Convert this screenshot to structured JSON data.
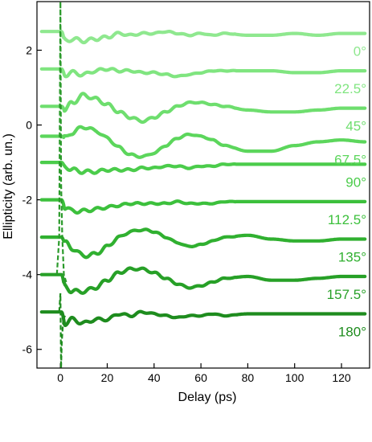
{
  "chart_data": {
    "type": "line",
    "xlabel": "Delay (ps)",
    "ylabel": "Ellipticity (arb. un.)",
    "xlim": [
      -10,
      132
    ],
    "ylim": [
      -6.5,
      3.3
    ],
    "xticks": [
      0,
      20,
      40,
      60,
      80,
      100,
      120
    ],
    "yticks": [
      2,
      0,
      -2,
      -4,
      -6
    ],
    "grid": false,
    "series": [
      {
        "name": "0°",
        "color": "#8fe88f",
        "offset": 2.5,
        "x": [
          -8,
          -2,
          0.5,
          2,
          5,
          10,
          15,
          20,
          25,
          30,
          35,
          40,
          45,
          50,
          55,
          60,
          65,
          70,
          80,
          90,
          100,
          110,
          120,
          130
        ],
        "y": [
          2.5,
          2.5,
          2.5,
          2.25,
          2.3,
          2.25,
          2.3,
          2.35,
          2.45,
          2.4,
          2.45,
          2.45,
          2.5,
          2.45,
          2.4,
          2.45,
          2.4,
          2.45,
          2.4,
          2.4,
          2.45,
          2.4,
          2.45,
          2.45
        ]
      },
      {
        "name": "22.5°",
        "color": "#80e580",
        "offset": 1.5,
        "x": [
          -8,
          -2,
          0.5,
          2,
          5,
          10,
          15,
          20,
          25,
          30,
          35,
          40,
          45,
          50,
          55,
          60,
          65,
          70,
          80,
          90,
          100,
          110,
          120,
          130
        ],
        "y": [
          1.5,
          1.5,
          1.5,
          1.35,
          1.4,
          1.35,
          1.45,
          1.5,
          1.45,
          1.45,
          1.4,
          1.4,
          1.35,
          1.3,
          1.35,
          1.4,
          1.45,
          1.45,
          1.45,
          1.45,
          1.4,
          1.4,
          1.45,
          1.45
        ]
      },
      {
        "name": "45°",
        "color": "#6ede6e",
        "offset": 0.5,
        "x": [
          -8,
          -2,
          0.5,
          2,
          5,
          10,
          15,
          20,
          25,
          30,
          35,
          40,
          45,
          50,
          55,
          60,
          65,
          70,
          80,
          90,
          100,
          110,
          120,
          130
        ],
        "y": [
          0.5,
          0.5,
          0.5,
          0.4,
          0.6,
          0.8,
          0.7,
          0.55,
          0.35,
          0.2,
          0.1,
          0.2,
          0.35,
          0.5,
          0.6,
          0.6,
          0.55,
          0.5,
          0.4,
          0.35,
          0.35,
          0.4,
          0.45,
          0.45
        ]
      },
      {
        "name": "67.5°",
        "color": "#5cd65c",
        "offset": -0.3,
        "x": [
          -8,
          -2,
          0.5,
          2,
          5,
          10,
          15,
          20,
          25,
          30,
          35,
          40,
          45,
          50,
          55,
          60,
          65,
          70,
          80,
          90,
          100,
          110,
          120,
          130
        ],
        "y": [
          -0.3,
          -0.3,
          -0.3,
          -0.35,
          -0.2,
          -0.05,
          -0.15,
          -0.35,
          -0.6,
          -0.8,
          -0.85,
          -0.75,
          -0.55,
          -0.35,
          -0.25,
          -0.3,
          -0.4,
          -0.55,
          -0.7,
          -0.7,
          -0.55,
          -0.45,
          -0.4,
          -0.45
        ]
      },
      {
        "name": "90°",
        "color": "#4bcc4b",
        "offset": -1.0,
        "x": [
          -8,
          -2,
          0.5,
          2,
          5,
          10,
          15,
          20,
          25,
          30,
          35,
          40,
          45,
          50,
          55,
          60,
          65,
          70,
          80,
          90,
          100,
          110,
          120,
          130
        ],
        "y": [
          -1.0,
          -1.0,
          -1.0,
          -1.1,
          -1.2,
          -1.25,
          -1.25,
          -1.2,
          -1.2,
          -1.2,
          -1.15,
          -1.15,
          -1.1,
          -1.1,
          -1.15,
          -1.1,
          -1.1,
          -1.05,
          -1.05,
          -1.05,
          -1.05,
          -1.05,
          -1.05,
          -1.05
        ]
      },
      {
        "name": "112.5°",
        "color": "#3cc03c",
        "offset": -2.0,
        "x": [
          -8,
          -2,
          0.5,
          2,
          5,
          10,
          15,
          20,
          25,
          30,
          35,
          40,
          45,
          50,
          55,
          60,
          65,
          70,
          80,
          90,
          100,
          110,
          120,
          130
        ],
        "y": [
          -2.0,
          -2.0,
          -2.0,
          -2.2,
          -2.3,
          -2.3,
          -2.25,
          -2.2,
          -2.15,
          -2.1,
          -2.1,
          -2.1,
          -2.1,
          -2.05,
          -2.1,
          -2.1,
          -2.1,
          -2.05,
          -2.05,
          -2.05,
          -2.05,
          -2.05,
          -2.05,
          -2.05
        ]
      },
      {
        "name": "135°",
        "color": "#30b030",
        "offset": -3.0,
        "x": [
          -8,
          -2,
          0.5,
          2,
          5,
          10,
          15,
          20,
          25,
          30,
          35,
          40,
          45,
          50,
          55,
          60,
          65,
          70,
          80,
          90,
          100,
          110,
          120,
          130
        ],
        "y": [
          -3.0,
          -3.0,
          -3.0,
          -3.15,
          -3.3,
          -3.5,
          -3.45,
          -3.25,
          -3.0,
          -2.85,
          -2.8,
          -2.85,
          -3.0,
          -3.15,
          -3.25,
          -3.2,
          -3.1,
          -3.0,
          -2.95,
          -3.05,
          -3.1,
          -3.1,
          -3.05,
          -3.05
        ]
      },
      {
        "name": "157.5°",
        "color": "#27a027",
        "offset": -4.0,
        "x": [
          -8,
          -2,
          0.5,
          2,
          5,
          10,
          15,
          20,
          25,
          30,
          35,
          40,
          45,
          50,
          55,
          60,
          65,
          70,
          80,
          90,
          100,
          110,
          120,
          130
        ],
        "y": [
          -4.0,
          -4.0,
          -4.0,
          -4.3,
          -4.45,
          -4.45,
          -4.35,
          -4.15,
          -3.95,
          -3.85,
          -3.85,
          -3.95,
          -4.1,
          -4.25,
          -4.35,
          -4.3,
          -4.2,
          -4.1,
          -4.05,
          -4.15,
          -4.15,
          -4.1,
          -4.05,
          -4.05
        ]
      },
      {
        "name": "180°",
        "color": "#1e8c1e",
        "offset": -5.0,
        "x": [
          -8,
          -2,
          0.5,
          2,
          5,
          10,
          15,
          20,
          25,
          30,
          35,
          40,
          45,
          50,
          55,
          60,
          65,
          70,
          80,
          90,
          100,
          110,
          120,
          130
        ],
        "y": [
          -5.0,
          -5.0,
          -5.0,
          -5.3,
          -5.2,
          -5.3,
          -5.2,
          -5.2,
          -5.05,
          -5.1,
          -5.0,
          -5.05,
          -5.1,
          -5.15,
          -5.1,
          -5.1,
          -5.05,
          -5.1,
          -5.05,
          -5.05,
          -5.05,
          -5.05,
          -5.05,
          -5.05
        ]
      }
    ],
    "dashed_series": [
      {
        "name": "",
        "color": "#2b9a2b",
        "x": [
          -1.5,
          -0.5,
          0,
          0.3,
          0.8,
          1.5,
          2.5
        ],
        "y": [
          -4.0,
          -3.0,
          3.3,
          -1.5,
          -3.0,
          -4.0,
          -4.2
        ]
      },
      {
        "name": "",
        "color": "#1e8c1e",
        "x": [
          -0.5,
          0,
          0.3,
          0.6,
          1.2,
          2.0
        ],
        "y": [
          -5.0,
          -4.5,
          -6.5,
          -5.8,
          -5.2,
          -5.1
        ]
      }
    ]
  }
}
